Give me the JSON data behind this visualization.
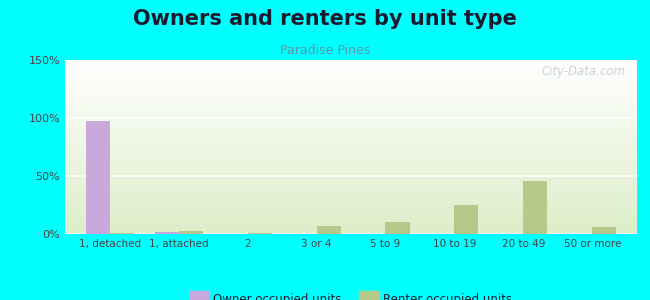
{
  "title": "Owners and renters by unit type",
  "subtitle": "Paradise Pines",
  "categories": [
    "1, detached",
    "1, attached",
    "2",
    "3 or 4",
    "5 to 9",
    "10 to 19",
    "20 to 49",
    "50 or more"
  ],
  "owner_values": [
    97,
    2,
    0,
    0,
    0,
    0,
    0,
    0
  ],
  "renter_values": [
    1,
    3,
    0.5,
    7,
    10,
    25,
    46,
    6
  ],
  "owner_color": "#c9a8dc",
  "renter_color": "#b5c98a",
  "background_color": "#00ffff",
  "ylim": [
    0,
    150
  ],
  "yticks": [
    0,
    50,
    100,
    150
  ],
  "ytick_labels": [
    "0%",
    "50%",
    "100%",
    "150%"
  ],
  "bar_width": 0.35,
  "title_fontsize": 15,
  "subtitle_fontsize": 9,
  "title_color": "#1a1a2e",
  "subtitle_color": "#5599aa",
  "watermark": "City-Data.com",
  "watermark_color": "#c0ccd0",
  "legend_label_owner": "Owner occupied units",
  "legend_label_renter": "Renter occupied units"
}
